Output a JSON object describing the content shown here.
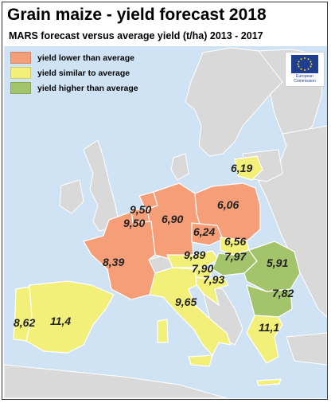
{
  "title": "Grain maize - yield forecast 2018",
  "subtitle": "MARS forecast versus average yield (t/ha) 2013 - 2017",
  "legend": [
    {
      "label": "yield lower than average",
      "color": "#f59e78"
    },
    {
      "label": "yield similar to average",
      "color": "#f3f07a"
    },
    {
      "label": "yield higher than average",
      "color": "#a3c46b"
    }
  ],
  "logo": {
    "line1": "European",
    "line2": "Commission"
  },
  "colors": {
    "sea": "#cfe3f5",
    "land": "#d9d9d9",
    "border": "#ffffff"
  },
  "regions": [
    {
      "name": "Lithuania",
      "value": "6,19",
      "category": "similar"
    },
    {
      "name": "Poland",
      "value": "6,06",
      "category": "lower"
    },
    {
      "name": "Netherlands",
      "value": "9,50",
      "category": "lower"
    },
    {
      "name": "Belgium",
      "value": "9,50",
      "category": "lower"
    },
    {
      "name": "Germany",
      "value": "6,90",
      "category": "lower"
    },
    {
      "name": "Czechia",
      "value": "6,24",
      "category": "lower"
    },
    {
      "name": "Slovakia",
      "value": "6,56",
      "category": "similar"
    },
    {
      "name": "France",
      "value": "8,39",
      "category": "lower"
    },
    {
      "name": "Austria",
      "value": "9,89",
      "category": "similar"
    },
    {
      "name": "Hungary",
      "value": "7,97",
      "category": "higher"
    },
    {
      "name": "Slovenia",
      "value": "7,90",
      "category": "similar"
    },
    {
      "name": "Croatia",
      "value": "7,93",
      "category": "similar"
    },
    {
      "name": "Romania",
      "value": "5,91",
      "category": "higher"
    },
    {
      "name": "Bulgaria",
      "value": "7,82",
      "category": "higher"
    },
    {
      "name": "Italy",
      "value": "9,65",
      "category": "similar"
    },
    {
      "name": "Portugal",
      "value": "8,62",
      "category": "similar"
    },
    {
      "name": "Spain",
      "value": "11,4",
      "category": "similar"
    },
    {
      "name": "Greece",
      "value": "11,1",
      "category": "similar"
    }
  ]
}
